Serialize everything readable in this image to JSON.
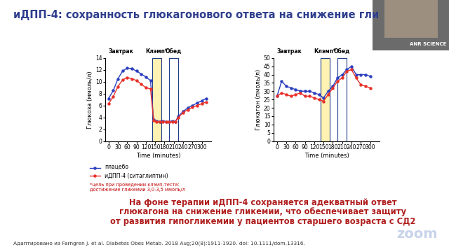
{
  "chart_data": [
    {
      "type": "line",
      "xlabel": "Time (minutes)",
      "ylabel": "Глюкоза (ммоль/л)",
      "x": [
        0,
        15,
        30,
        45,
        60,
        75,
        90,
        105,
        120,
        135,
        145,
        155,
        165,
        175,
        185,
        195,
        205,
        215,
        225,
        240,
        255,
        270,
        285,
        300,
        315
      ],
      "series": [
        {
          "name": "плацебо",
          "color": "#2b3fbf",
          "marker": "o",
          "values": [
            7.2,
            8.5,
            10.5,
            11.8,
            12.3,
            12.2,
            11.8,
            11.3,
            10.8,
            10.2,
            3.6,
            3.4,
            3.3,
            3.4,
            3.3,
            3.3,
            3.4,
            3.3,
            4.2,
            5.0,
            5.6,
            6.0,
            6.4,
            6.8,
            7.2
          ]
        },
        {
          "name": "иДПП-4 (ситаглиптин)",
          "color": "#e8312a",
          "marker": "o",
          "values": [
            6.3,
            7.5,
            9.2,
            10.3,
            10.7,
            10.5,
            10.2,
            9.6,
            9.0,
            8.8,
            3.5,
            3.3,
            3.3,
            3.2,
            3.3,
            3.3,
            3.2,
            3.3,
            4.0,
            4.8,
            5.3,
            5.7,
            6.0,
            6.3,
            6.6
          ]
        }
      ],
      "xlim": [
        -10,
        330
      ],
      "xticks": [
        0,
        30,
        60,
        90,
        120,
        150,
        180,
        210,
        240,
        270,
        300
      ],
      "ylim": [
        0,
        14
      ],
      "yticks": [
        0,
        2,
        4,
        6,
        8,
        10,
        12,
        14
      ],
      "periods": [
        {
          "label": "Завтрак",
          "start": 0
        },
        {
          "label": "Клэмп*",
          "start": 140,
          "end": 170,
          "color": "#fff2b3"
        },
        {
          "label": "Обед",
          "start": 195,
          "end": 225,
          "color": "#ffffff"
        }
      ],
      "note": "*цель при проведении клэмп-теста:\nдостижение гликемии 3,0-3,5 ммоль/л"
    },
    {
      "type": "line",
      "xlabel": "Time (minutes)",
      "ylabel": "Глюкагон (пмоль/л)",
      "x": [
        0,
        15,
        30,
        45,
        60,
        75,
        90,
        105,
        120,
        135,
        150,
        165,
        180,
        195,
        210,
        225,
        240,
        255,
        270,
        285,
        300
      ],
      "series": [
        {
          "name": "плацебо",
          "color": "#2b3fbf",
          "marker": "o",
          "values": [
            27,
            36,
            33,
            32,
            31,
            30,
            30,
            30,
            29,
            28,
            26,
            30,
            33,
            38,
            40,
            43,
            45,
            40,
            40,
            40,
            39
          ]
        },
        {
          "name": "иДПП-4 (ситаглиптин)",
          "color": "#e8312a",
          "marker": "o",
          "values": [
            27,
            29,
            28,
            27,
            28,
            29,
            27,
            27,
            26,
            25,
            24,
            28,
            32,
            36,
            38,
            42,
            43,
            38,
            34,
            33,
            32
          ]
        }
      ],
      "xlim": [
        -10,
        330
      ],
      "xticks": [
        0,
        30,
        60,
        90,
        120,
        150,
        180,
        210,
        240,
        270,
        300
      ],
      "ylim": [
        0,
        50
      ],
      "yticks": [
        0,
        5,
        10,
        15,
        20,
        25,
        30,
        35,
        40,
        45,
        50
      ],
      "periods": [
        {
          "label": "Завтрак",
          "start": 0
        },
        {
          "label": "Клэмп*",
          "start": 140,
          "end": 170,
          "color": "#fff2b3"
        },
        {
          "label": "Обед",
          "start": 195,
          "end": 225,
          "color": "#ffffff"
        }
      ]
    }
  ],
  "slide": {
    "title": "иДПП-4: сохранность глюкагонового ответа на снижение гли",
    "conclusion": "На фоне терапии иДПП-4 сохраняется адекватный ответ\nглюкагона на снижение гликемии, что обеспечивает защиту\nот развития гипогликемии у пациентов старшего возраста с СД2",
    "source": "Адаптировано из Farngren J. et al. Diabetes Obes Metab. 2018 Aug;20(8):1911-1920. doi: 10.1111/dom.13316.",
    "badge": "ANR SCIENCE",
    "watermark": "zoom"
  }
}
